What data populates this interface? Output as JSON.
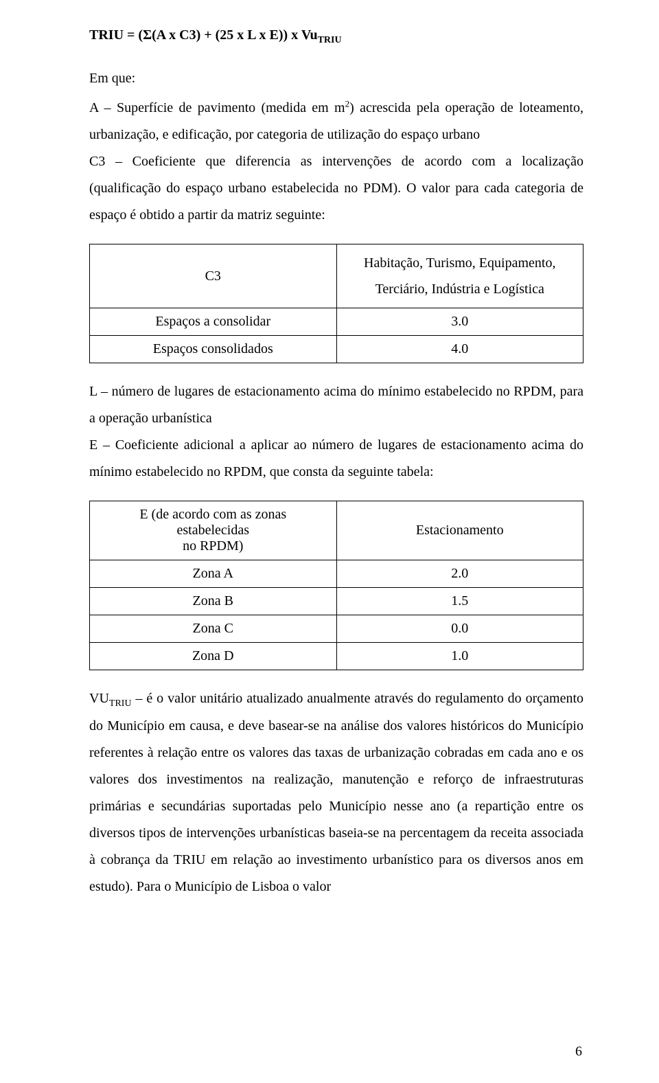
{
  "formula": "TRIU = (Σ(A x C3) + (25 x L x E)) x Vu",
  "formula_sub": "TRIU",
  "lead_in": "Em que:",
  "para_A_prefix": "A – Superfície de pavimento (medida em m",
  "para_A_sup": "2",
  "para_A_suffix": ") acrescida pela operação de loteamento, urbanização, e edificação, por categoria de utilização do espaço urbano",
  "para_C3": "C3 – Coeficiente que diferencia as intervenções de acordo com a localização (qualificação do espaço urbano estabelecida no PDM). O valor para cada categoria de espaço é obtido a partir da matriz seguinte:",
  "table1": {
    "c3_label": "C3",
    "col2_line1": "Habitação, Turismo, Equipamento,",
    "col2_line2": "Terciário, Indústria e Logística",
    "rows": [
      {
        "label": "Espaços a consolidar",
        "value": "3.0"
      },
      {
        "label": "Espaços consolidados",
        "value": "4.0"
      }
    ]
  },
  "para_L": "L – número de lugares de estacionamento acima do mínimo estabelecido no RPDM, para a operação urbanística",
  "para_E": "E – Coeficiente adicional a aplicar ao número de lugares de estacionamento acima do mínimo estabelecido no RPDM, que consta da seguinte tabela:",
  "table2": {
    "header_left_line1": "E (de acordo com as zonas estabelecidas",
    "header_left_line2": "no RPDM)",
    "header_right": "Estacionamento",
    "rows": [
      {
        "zone": "Zona A",
        "value": "2.0"
      },
      {
        "zone": "Zona B",
        "value": "1.5"
      },
      {
        "zone": "Zona C",
        "value": "0.0"
      },
      {
        "zone": "Zona D",
        "value": "1.0"
      }
    ]
  },
  "para_VU_prefix": "VU",
  "para_VU_sub": "TRIU",
  "para_VU_rest": " – é o valor unitário atualizado anualmente através do regulamento do orçamento do Município em causa, e deve basear-se na análise dos valores históricos do Município referentes à relação entre os valores das taxas de urbanização cobradas em cada ano e os valores dos investimentos na realização, manutenção e reforço de infraestruturas primárias e secundárias suportadas pelo Município nesse ano (a repartição entre os diversos tipos de intervenções urbanísticas baseia-se na percentagem da receita associada à cobrança da TRIU em relação ao investimento urbanístico para os diversos anos em estudo). Para o Município de Lisboa o valor",
  "page_number": "6"
}
